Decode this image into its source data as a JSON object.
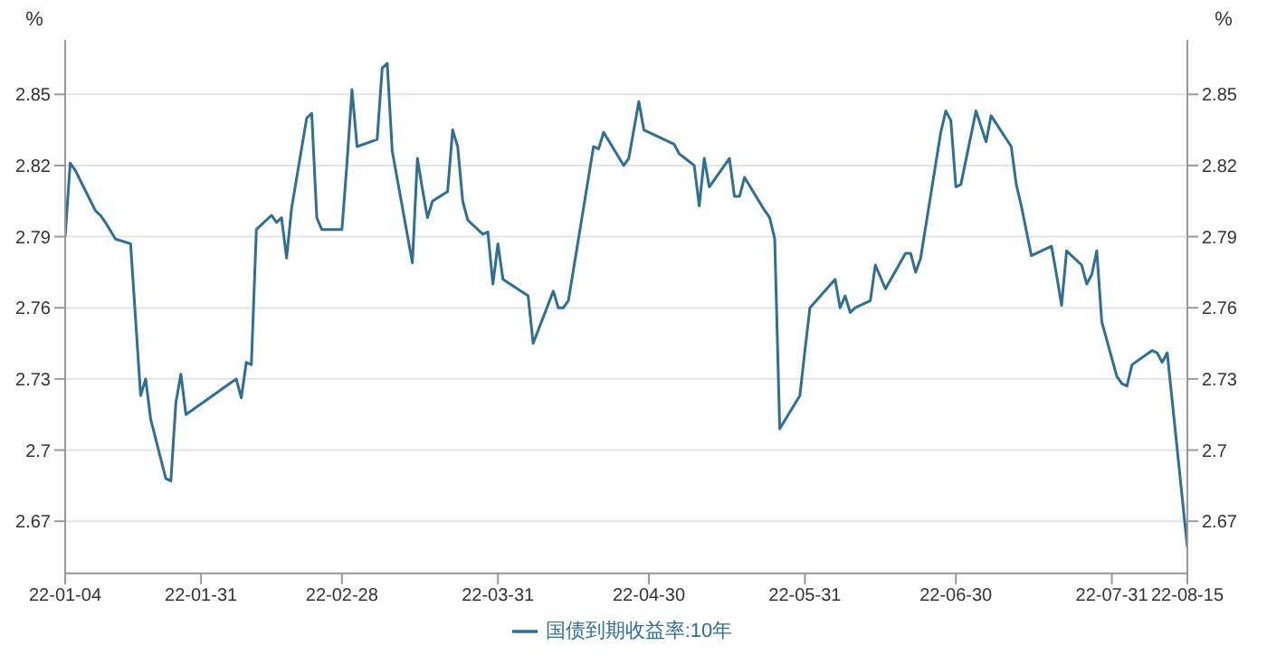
{
  "chart_data": {
    "type": "line",
    "ylabel": "%",
    "y2label": "%",
    "x": [
      "--01-04",
      "--01-05",
      "--01-06",
      "--01-10",
      "--01-11",
      "--01-12",
      "--01-14",
      "--01-17",
      "--01-19",
      "--01-20",
      "--01-21",
      "--01-24",
      "--01-25",
      "--01-26",
      "--01-27",
      "--01-28",
      "--02-07",
      "--02-08",
      "--02-09",
      "--02-10",
      "--02-11",
      "--02-14",
      "--02-15",
      "--02-16",
      "--02-17",
      "--02-18",
      "--02-21",
      "--02-22",
      "--02-23",
      "--02-24",
      "--02-28",
      "--03-01",
      "--03-02",
      "--03-03",
      "--03-07",
      "--03-08",
      "--03-09",
      "--03-10",
      "--03-14",
      "--03-15",
      "--03-16",
      "--03-17",
      "--03-18",
      "--03-21",
      "--03-22",
      "--03-23",
      "--03-24",
      "--03-25",
      "--03-28",
      "--03-29",
      "--03-30",
      "--03-31",
      "--04-01",
      "--04-06",
      "--04-07",
      "--04-11",
      "--04-12",
      "--04-13",
      "--04-14",
      "--04-19",
      "--04-20",
      "--04-21",
      "--04-25",
      "--04-26",
      "--04-28",
      "--04-29",
      "--05-05",
      "--05-06",
      "--05-09",
      "--05-10",
      "--05-11",
      "--05-12",
      "--05-16",
      "--05-17",
      "--05-18",
      "--05-19",
      "--05-23",
      "--05-24",
      "--05-25",
      "--05-26",
      "--05-30",
      "--05-31",
      "--06-01",
      "--06-06",
      "--06-07",
      "--06-08",
      "--06-09",
      "--06-10",
      "--06-13",
      "--06-14",
      "--06-16",
      "--06-20",
      "--06-21",
      "--06-22",
      "--06-23",
      "--06-27",
      "--06-28",
      "--06-29",
      "--06-30",
      "--07-01",
      "--07-04",
      "--07-06",
      "--07-07",
      "--07-11",
      "--07-12",
      "--07-13",
      "--07-15",
      "--07-19",
      "--07-20",
      "--07-21",
      "--07-22",
      "--07-25",
      "--07-26",
      "--07-27",
      "--07-28",
      "--07-29",
      "--08-01",
      "--08-02",
      "--08-03",
      "--08-04",
      "--08-08",
      "--08-09",
      "--08-10",
      "--08-11",
      "--08-15"
    ],
    "series": [
      {
        "name": "国债到期收益率:10年",
        "color": "#2e6f96",
        "values": [
          2.79,
          2.821,
          2.818,
          2.801,
          2.799,
          2.796,
          2.789,
          2.787,
          2.723,
          2.73,
          2.713,
          2.688,
          2.687,
          2.72,
          2.732,
          2.715,
          2.73,
          2.722,
          2.737,
          2.736,
          2.793,
          2.799,
          2.796,
          2.798,
          2.781,
          2.802,
          2.84,
          2.842,
          2.798,
          2.793,
          2.793,
          2.821,
          2.852,
          2.828,
          2.831,
          2.861,
          2.863,
          2.826,
          2.779,
          2.823,
          2.81,
          2.798,
          2.805,
          2.809,
          2.835,
          2.828,
          2.805,
          2.797,
          2.791,
          2.792,
          2.77,
          2.787,
          2.772,
          2.765,
          2.745,
          2.767,
          2.76,
          2.76,
          2.763,
          2.828,
          2.827,
          2.834,
          2.82,
          2.823,
          2.847,
          2.835,
          2.829,
          2.825,
          2.82,
          2.803,
          2.823,
          2.811,
          2.823,
          2.807,
          2.807,
          2.815,
          2.801,
          2.798,
          2.789,
          2.709,
          2.723,
          2.742,
          2.76,
          2.772,
          2.76,
          2.765,
          2.758,
          2.76,
          2.763,
          2.778,
          2.768,
          2.783,
          2.783,
          2.775,
          2.781,
          2.834,
          2.843,
          2.839,
          2.811,
          2.812,
          2.843,
          2.83,
          2.841,
          2.828,
          2.812,
          2.803,
          2.782,
          2.786,
          2.774,
          2.761,
          2.784,
          2.778,
          2.77,
          2.774,
          2.784,
          2.754,
          2.731,
          2.728,
          2.727,
          2.736,
          2.742,
          2.741,
          2.737,
          2.741,
          2.659
        ]
      }
    ],
    "xlim": [
      "--01-04",
      "--08-15"
    ],
    "xticks": [
      {
        "value": "--01-04",
        "label": "22-01-04"
      },
      {
        "value": "--01-31",
        "label": "22-01-31"
      },
      {
        "value": "--02-28",
        "label": "22-02-28"
      },
      {
        "value": "--03-31",
        "label": "22-03-31"
      },
      {
        "value": "--04-30",
        "label": "22-04-30"
      },
      {
        "value": "--05-31",
        "label": "22-05-31"
      },
      {
        "value": "--06-30",
        "label": "22-06-30"
      },
      {
        "value": "--07-31",
        "label": "22-07-31"
      },
      {
        "value": "--08-15",
        "label": "22-08-15"
      }
    ],
    "ylim": [
      2.648,
      2.873
    ],
    "yticks": [
      2.67,
      2.7,
      2.73,
      2.76,
      2.79,
      2.82,
      2.85
    ],
    "y2lim": [
      2.648,
      2.873
    ],
    "y2ticks": [
      2.67,
      2.7,
      2.73,
      2.76,
      2.79,
      2.82,
      2.85
    ],
    "grid": "y",
    "legend": "bottom",
    "marker": "none",
    "line_style": "solid"
  }
}
